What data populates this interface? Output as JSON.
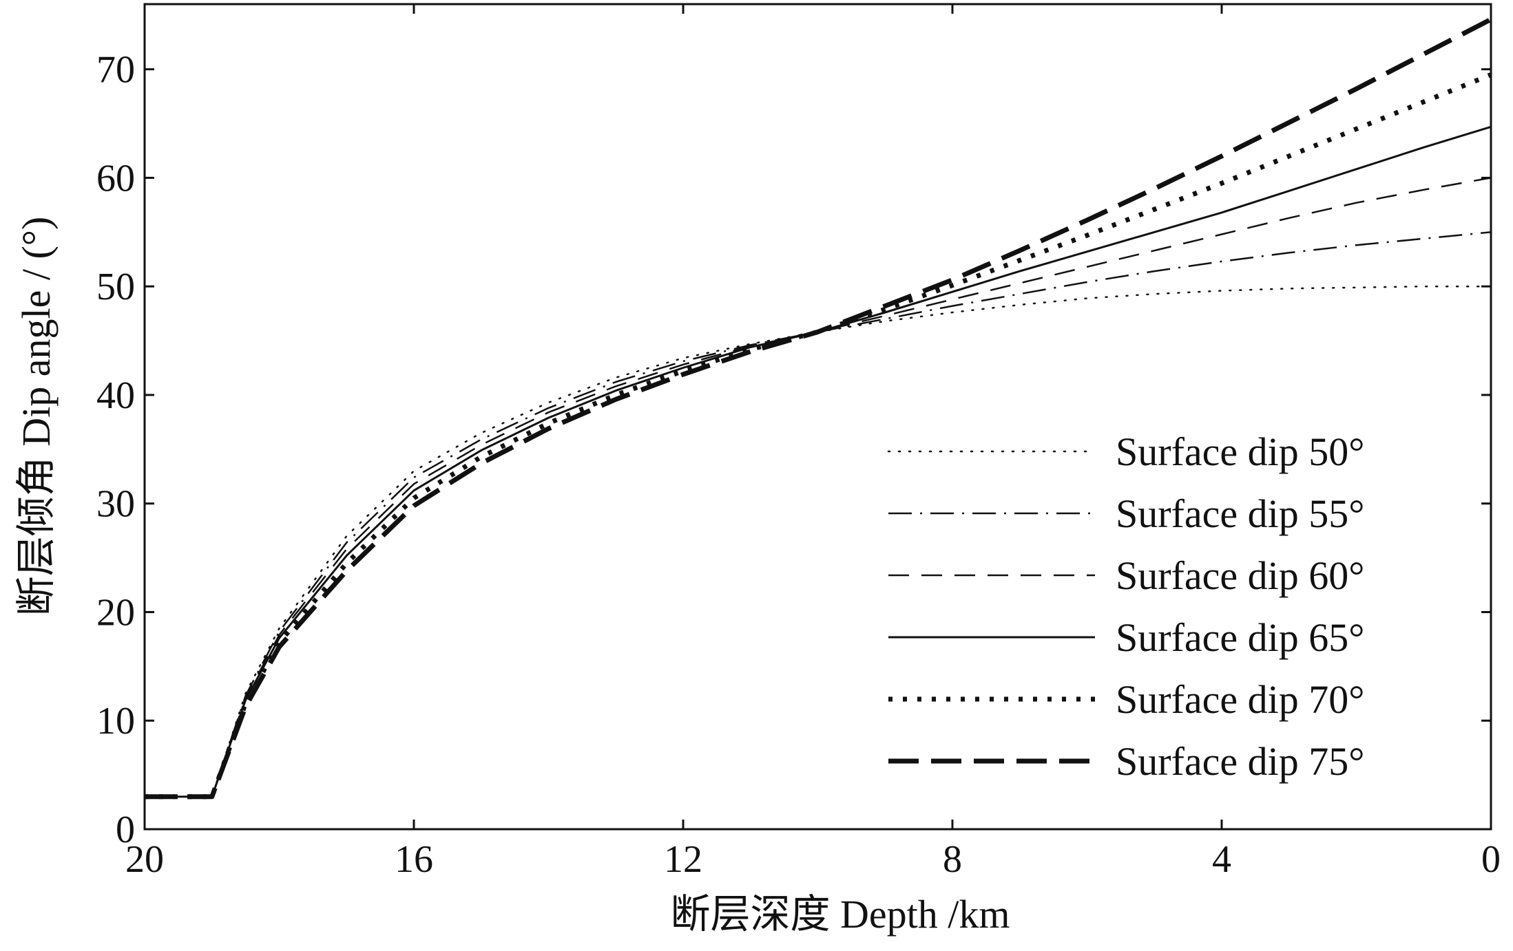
{
  "chart_data": {
    "type": "line",
    "title": "",
    "xlabel": "断层深度 Depth /km",
    "ylabel": "断层倾角 Dip angle / (°)",
    "xlim": [
      20,
      0
    ],
    "ylim": [
      0,
      76
    ],
    "x_reversed": true,
    "xticks": [
      20,
      16,
      12,
      8,
      4,
      0
    ],
    "xtick_labels": [
      "20",
      "16",
      "12",
      "8",
      "4",
      "0"
    ],
    "yticks": [
      0,
      10,
      20,
      30,
      40,
      50,
      60,
      70
    ],
    "ytick_labels": [
      "0",
      "10",
      "20",
      "30",
      "40",
      "50",
      "60",
      "70"
    ],
    "grid": false,
    "legend_position": "lower-right",
    "x": [
      20,
      19,
      18.5,
      18,
      17,
      16,
      15,
      14,
      13,
      12,
      11,
      10,
      9,
      8,
      7,
      6,
      5,
      4,
      3,
      2,
      1,
      0
    ],
    "series": [
      {
        "name": "Surface dip 50°",
        "style": "dotted-fine",
        "values": [
          3,
          3,
          12.5,
          18.5,
          27,
          33,
          36.5,
          39.3,
          41.6,
          43.4,
          44.7,
          45.8,
          46.8,
          47.6,
          48.3,
          48.9,
          49.3,
          49.6,
          49.8,
          49.9,
          50,
          50
        ]
      },
      {
        "name": "Surface dip 55°",
        "style": "dash-dot",
        "values": [
          3,
          3,
          12.3,
          18.2,
          26.4,
          32.4,
          35.9,
          38.8,
          41.2,
          43.1,
          44.6,
          45.8,
          47,
          48.2,
          49.3,
          50.4,
          51.4,
          52.3,
          53.1,
          53.8,
          54.4,
          55
        ]
      },
      {
        "name": "Surface dip 60°",
        "style": "dashed",
        "values": [
          3,
          3,
          12.1,
          17.9,
          25.8,
          31.8,
          35.4,
          38.4,
          40.8,
          42.8,
          44.5,
          45.8,
          47.3,
          48.8,
          50.3,
          51.8,
          53.3,
          54.8,
          56.3,
          57.7,
          58.9,
          60
        ]
      },
      {
        "name": "Surface dip 65°",
        "style": "solid",
        "values": [
          3,
          3,
          11.9,
          17.6,
          25.2,
          31.2,
          34.9,
          37.9,
          40.4,
          42.5,
          44.4,
          45.8,
          47.6,
          49.5,
          51.4,
          53.2,
          55,
          56.8,
          58.8,
          60.8,
          62.8,
          64.7
        ]
      },
      {
        "name": "Surface dip 70°",
        "style": "dotted-bold",
        "values": [
          3,
          3,
          11.6,
          17.2,
          24.5,
          30.5,
          34.3,
          37.4,
          40,
          42.2,
          44.2,
          45.8,
          47.9,
          50.1,
          52.4,
          54.7,
          57.1,
          59.5,
          62,
          64.5,
          67,
          69.5
        ]
      },
      {
        "name": "Surface dip 75°",
        "style": "dashed-bold",
        "values": [
          3,
          3,
          11.3,
          16.8,
          23.8,
          29.8,
          33.7,
          36.9,
          39.6,
          41.9,
          44,
          45.8,
          48.2,
          50.6,
          53.3,
          56.1,
          59,
          62,
          65.1,
          68.2,
          71.4,
          74.6
        ]
      }
    ]
  }
}
